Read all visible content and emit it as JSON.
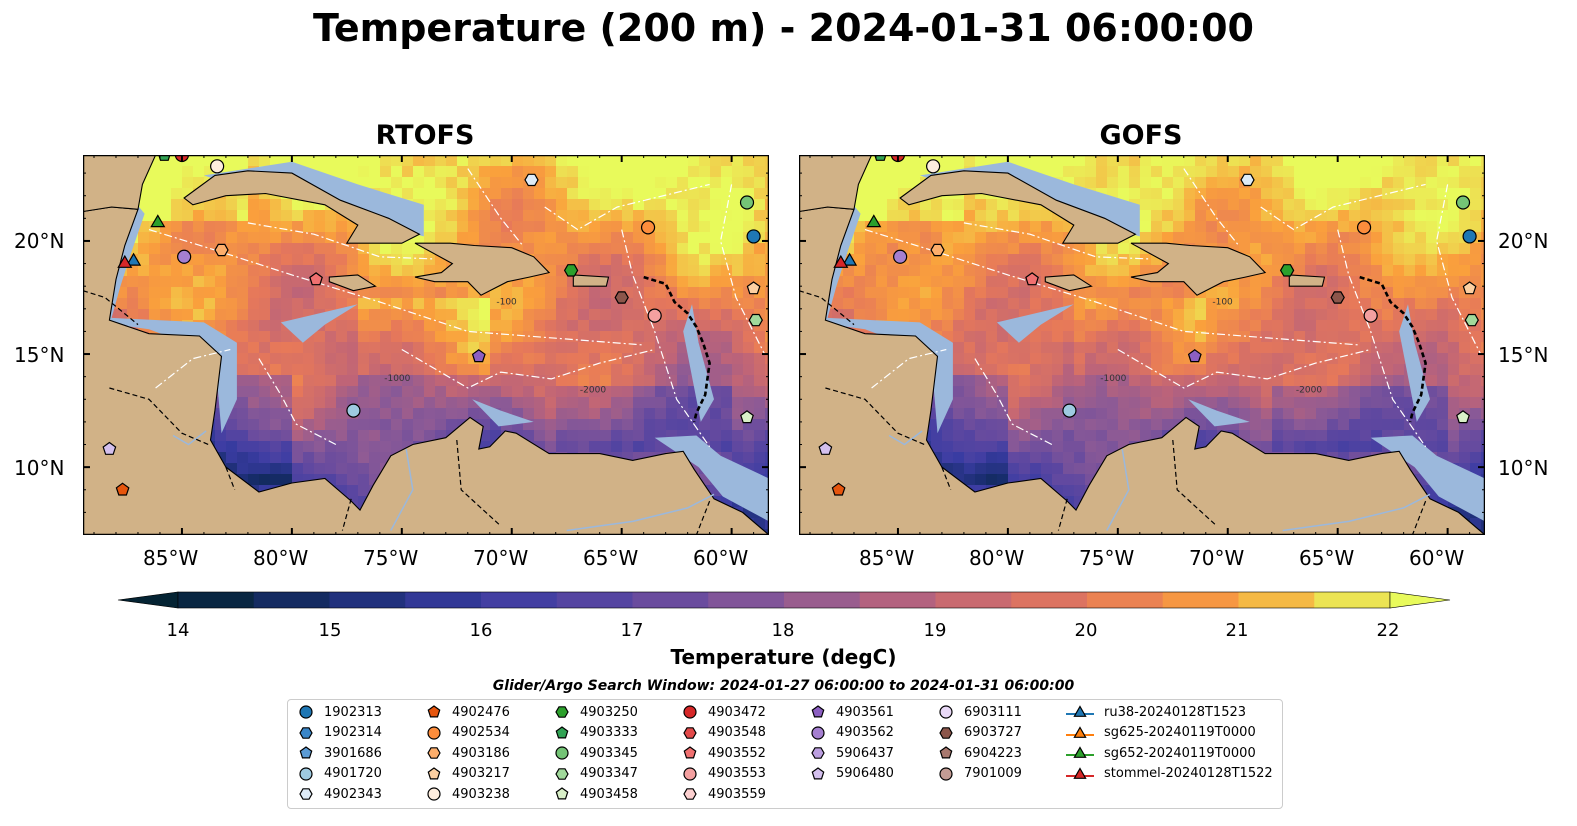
{
  "title": "Temperature (200 m) - 2024-01-31 06:00:00",
  "panels": [
    {
      "name": "RTOFS"
    },
    {
      "name": "GOFS"
    }
  ],
  "axes": {
    "lon_ticks": [
      "85°W",
      "80°W",
      "75°W",
      "70°W",
      "65°W",
      "60°W"
    ],
    "lat_ticks": [
      "20°N",
      "15°N",
      "10°N"
    ],
    "lon_range": [
      -89.5,
      -58.3
    ],
    "lat_range": [
      7.0,
      23.8
    ]
  },
  "colorbar": {
    "label": "Temperature (degC)",
    "ticks": [
      "14",
      "15",
      "16",
      "17",
      "18",
      "19",
      "20",
      "21",
      "22"
    ],
    "range": [
      14,
      22
    ],
    "colormap": "thermal",
    "extend": "both"
  },
  "contour_labels": [
    "-100",
    "-1000",
    "-2000"
  ],
  "search_window": "Glider/Argo Search Window: 2024-01-27 06:00:00 to 2024-01-31 06:00:00",
  "legend": {
    "items": [
      {
        "label": "1902313",
        "marker": "circle",
        "color": "#1f77b4"
      },
      {
        "label": "1902314",
        "marker": "hexagon",
        "color": "#3a86c8"
      },
      {
        "label": "3901686",
        "marker": "pentagon",
        "color": "#5b9bd5"
      },
      {
        "label": "4901720",
        "marker": "circle",
        "color": "#9ecae1"
      },
      {
        "label": "4902343",
        "marker": "hexagon",
        "color": "#deebf7"
      },
      {
        "label": "4902476",
        "marker": "pentagon",
        "color": "#e6550d"
      },
      {
        "label": "4902534",
        "marker": "circle",
        "color": "#fd8d3c"
      },
      {
        "label": "4903186",
        "marker": "hexagon",
        "color": "#fdae6b"
      },
      {
        "label": "4903217",
        "marker": "pentagon",
        "color": "#fdd0a2"
      },
      {
        "label": "4903238",
        "marker": "circle",
        "color": "#feedde"
      },
      {
        "label": "4903250",
        "marker": "hexagon",
        "color": "#2ca02c"
      },
      {
        "label": "4903333",
        "marker": "pentagon",
        "color": "#31a354"
      },
      {
        "label": "4903345",
        "marker": "circle",
        "color": "#74c476"
      },
      {
        "label": "4903347",
        "marker": "hexagon",
        "color": "#a1d99b"
      },
      {
        "label": "4903458",
        "marker": "pentagon",
        "color": "#d9f0c8"
      },
      {
        "label": "4903472",
        "marker": "circle",
        "color": "#d62728"
      },
      {
        "label": "4903548",
        "marker": "hexagon",
        "color": "#e34a4a"
      },
      {
        "label": "4903552",
        "marker": "pentagon",
        "color": "#f07070"
      },
      {
        "label": "4903553",
        "marker": "circle",
        "color": "#f4a0a0"
      },
      {
        "label": "4903559",
        "marker": "hexagon",
        "color": "#fcd0d0"
      },
      {
        "label": "4903561",
        "marker": "pentagon",
        "color": "#8c5fc2"
      },
      {
        "label": "4903562",
        "marker": "circle",
        "color": "#a57fd0"
      },
      {
        "label": "5906437",
        "marker": "hexagon",
        "color": "#bc9fe0"
      },
      {
        "label": "5906480",
        "marker": "pentagon",
        "color": "#d4c0ee"
      },
      {
        "label": "6903111",
        "marker": "circle",
        "color": "#e8d8f6"
      },
      {
        "label": "6903727",
        "marker": "hexagon",
        "color": "#8c564b"
      },
      {
        "label": "6904223",
        "marker": "pentagon",
        "color": "#a8786e"
      },
      {
        "label": "7901009",
        "marker": "circle",
        "color": "#c49c94"
      },
      {
        "label": "ru38-20240128T1523",
        "marker": "triangle",
        "color": "#1f77b4"
      },
      {
        "label": "sg625-20240119T0000",
        "marker": "triangle",
        "color": "#ff7f0e"
      },
      {
        "label": "sg652-20240119T0000",
        "marker": "triangle",
        "color": "#2ca02c"
      },
      {
        "label": "stommel-20240128T1522",
        "marker": "triangle",
        "color": "#d62728"
      }
    ]
  },
  "floats": [
    {
      "id": "1902313",
      "lon": -59.0,
      "lat": 20.2
    },
    {
      "id": "4903345",
      "lon": -59.3,
      "lat": 21.7
    },
    {
      "id": "4902534",
      "lon": -63.8,
      "lat": 20.6
    },
    {
      "id": "4903347",
      "lon": -58.9,
      "lat": 16.5
    },
    {
      "id": "4903217",
      "lon": -59.0,
      "lat": 17.9
    },
    {
      "id": "6903727",
      "lon": -65.0,
      "lat": 17.5
    },
    {
      "id": "4903553",
      "lon": -63.5,
      "lat": 16.7
    },
    {
      "id": "4903561",
      "lon": -71.5,
      "lat": 14.9
    },
    {
      "id": "4903250",
      "lon": -67.3,
      "lat": 18.7
    },
    {
      "id": "4903552",
      "lon": -78.9,
      "lat": 18.3
    },
    {
      "id": "4902343",
      "lon": -69.1,
      "lat": 22.7
    },
    {
      "id": "4903562",
      "lon": -84.9,
      "lat": 19.3
    },
    {
      "id": "4903186",
      "lon": -83.2,
      "lat": 19.6
    },
    {
      "id": "4903238",
      "lon": -83.4,
      "lat": 23.3
    },
    {
      "id": "4901720",
      "lon": -77.2,
      "lat": 12.5
    },
    {
      "id": "4903458",
      "lon": -59.3,
      "lat": 12.2
    },
    {
      "id": "5906480",
      "lon": -88.3,
      "lat": 10.8
    },
    {
      "id": "4902476",
      "lon": -87.7,
      "lat": 9.0
    },
    {
      "id": "4903472",
      "lon": -85.0,
      "lat": 23.8
    },
    {
      "id": "4903333",
      "lon": -85.8,
      "lat": 23.8
    }
  ],
  "gliders": [
    {
      "id": "sg652-20240119T0000",
      "lon": -86.1,
      "lat": 20.8
    },
    {
      "id": "ru38-20240128T1523",
      "lon": -87.2,
      "lat": 19.1
    },
    {
      "id": "stommel-20240128T1522",
      "lon": -87.6,
      "lat": 19.0
    }
  ]
}
